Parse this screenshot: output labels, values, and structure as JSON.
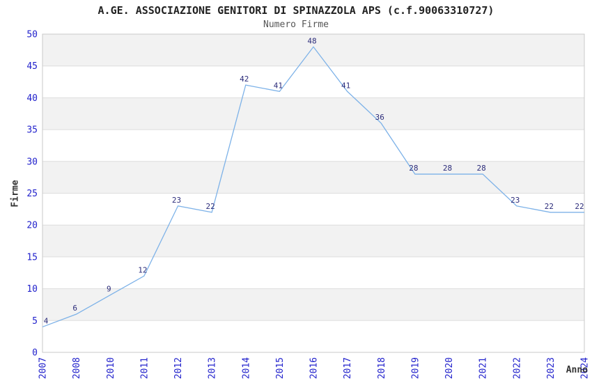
{
  "chart_data": {
    "type": "line",
    "title": "A.GE. ASSOCIAZIONE GENITORI DI SPINAZZOLA APS (c.f.90063310727)",
    "subtitle": "Numero Firme",
    "xlabel": "Anno",
    "ylabel": "Firme",
    "categories": [
      "2007",
      "2008",
      "2010",
      "2011",
      "2012",
      "2013",
      "2014",
      "2015",
      "2016",
      "2017",
      "2018",
      "2019",
      "2020",
      "2021",
      "2022",
      "2023",
      "2024"
    ],
    "values": [
      4,
      6,
      9,
      12,
      23,
      22,
      42,
      41,
      48,
      41,
      36,
      28,
      28,
      28,
      23,
      22,
      22
    ],
    "ylim": [
      0,
      50
    ],
    "ytick_step": 5,
    "yticks": [
      0,
      5,
      10,
      15,
      20,
      25,
      30,
      35,
      40,
      45,
      50
    ],
    "grid": true,
    "legend": "none",
    "band_style": "alternating-horizontal",
    "colors": {
      "line": "#7db2e8",
      "data_label": "#2b2b7a",
      "tick_label": "#2222cc",
      "band": "#f2f2f2",
      "grid": "#dddddd",
      "border": "#c9c9c9",
      "title": "#222222",
      "subtitle": "#555555",
      "axis_label": "#333333",
      "background": "#ffffff"
    }
  }
}
